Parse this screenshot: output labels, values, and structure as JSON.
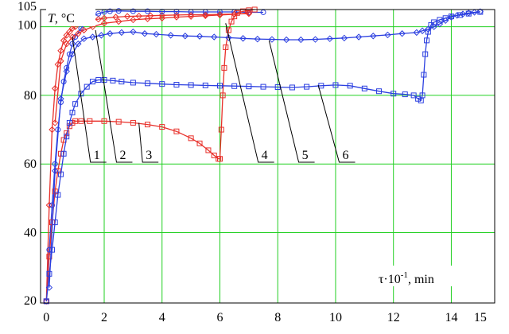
{
  "chart_data": {
    "type": "line",
    "xlabel": "τ·10",
    "xlabel_exp": "-1",
    "xlabel_unit": ", min",
    "ylabel_var": "T",
    "ylabel_unit": ", °C",
    "xlim": [
      -0.2,
      15.5
    ],
    "ylim": [
      19.5,
      105
    ],
    "x_ticks": [
      0,
      2,
      4,
      6,
      8,
      10,
      12,
      14,
      15
    ],
    "y_ticks": [
      20,
      40,
      60,
      80,
      100,
      105
    ],
    "grid": true,
    "colors": {
      "red": "#e8302a",
      "blue": "#2b3fe0",
      "grid": "#22d022"
    },
    "series": [
      {
        "label": "1",
        "color": "#e8302a",
        "marker": "diamond",
        "x": [
          0.0,
          0.1,
          0.2,
          0.3,
          0.4,
          0.5,
          0.6,
          0.7,
          0.8,
          0.9,
          1.0,
          1.2,
          1.4,
          1.6,
          1.8,
          2.0,
          2.4,
          2.8,
          3.2,
          3.6,
          4.0,
          4.5,
          5.0,
          5.5,
          6.0,
          6.5,
          7.0
        ],
        "y": [
          20,
          48,
          70,
          82,
          89,
          93,
          96,
          97.5,
          98.5,
          99.5,
          100,
          101,
          101.5,
          102,
          102.2,
          102.5,
          102.8,
          103,
          103.1,
          103.2,
          103.3,
          103.4,
          103.5,
          103.5,
          103.6,
          103.7,
          103.8
        ]
      },
      {
        "label": "2",
        "color": "#2b3fe0",
        "marker": "circle",
        "x": [
          0.0,
          0.1,
          0.2,
          0.3,
          0.4,
          0.5,
          0.6,
          0.7,
          0.8,
          0.9,
          1.0,
          1.2,
          1.4,
          1.6,
          1.8,
          2.0,
          2.2,
          2.5,
          3.0,
          3.5,
          4.0,
          4.5,
          5.0,
          5.5,
          6.0,
          6.5,
          7.0,
          7.5
        ],
        "y": [
          20,
          35,
          48,
          60,
          70,
          78,
          84,
          88,
          92,
          95,
          97,
          99.5,
          101.5,
          103,
          103.8,
          104.3,
          104.5,
          104.6,
          104.5,
          104.5,
          104.4,
          104.4,
          104.3,
          104.3,
          104.3,
          104.3,
          104.2,
          104.2
        ]
      },
      {
        "label": "3",
        "color": "#e8302a",
        "marker": "square",
        "x": [
          0.0,
          0.1,
          0.2,
          0.3,
          0.4,
          0.5,
          0.6,
          0.7,
          0.8,
          0.9,
          1.0,
          1.2,
          1.5,
          2.0,
          2.5,
          3.0,
          3.5,
          4.0,
          4.5,
          5.0,
          5.3,
          5.6,
          5.8,
          5.95,
          6.0,
          6.05,
          6.1,
          6.15,
          6.2,
          6.3,
          6.4,
          6.5,
          6.6,
          6.8,
          7.0,
          7.2
        ],
        "y": [
          20,
          33,
          43,
          52,
          58,
          63,
          67,
          69,
          71,
          72,
          72.5,
          72.5,
          72.5,
          72.5,
          72.3,
          72,
          71.5,
          70.8,
          69.5,
          67.5,
          66,
          64,
          62.5,
          61.5,
          61.5,
          70,
          80,
          88,
          94,
          99,
          101.5,
          103,
          104,
          104.5,
          104.8,
          105
        ]
      },
      {
        "label": "4",
        "color": "#e8302a",
        "marker": "diamond",
        "x": [
          0.3,
          0.5,
          0.7,
          0.9,
          1.1,
          1.3,
          1.6,
          2.0,
          2.5,
          3.0,
          3.5,
          4.0,
          4.5,
          5.0,
          5.5,
          6.0,
          6.5,
          7.0
        ],
        "y": [
          72,
          90,
          95,
          97,
          98,
          99,
          100,
          101,
          101.5,
          102,
          102.3,
          102.5,
          102.8,
          103,
          103.2,
          103.4,
          103.6,
          104
        ]
      },
      {
        "label": "5",
        "color": "#2b3fe0",
        "marker": "diamond",
        "x": [
          0.1,
          0.3,
          0.5,
          0.7,
          0.9,
          1.1,
          1.3,
          1.6,
          1.9,
          2.2,
          2.6,
          3.0,
          3.4,
          3.8,
          4.3,
          4.8,
          5.3,
          5.8,
          6.3,
          6.8,
          7.3,
          7.8,
          8.3,
          8.8,
          9.3,
          9.8,
          10.3,
          10.8,
          11.3,
          11.8,
          12.3,
          12.8,
          13.0,
          13.2,
          13.4,
          13.6,
          13.8,
          14.0,
          14.2,
          14.4,
          14.6,
          14.8,
          15.0
        ],
        "y": [
          24,
          58,
          79,
          87,
          92,
          95,
          96.5,
          97,
          97.5,
          98,
          98.3,
          98.5,
          98,
          97.8,
          97.5,
          97.3,
          97.2,
          97,
          96.8,
          96.6,
          96.4,
          96.3,
          96.2,
          96.2,
          96.3,
          96.5,
          96.7,
          97,
          97.3,
          97.6,
          98,
          98.3,
          98.8,
          99.3,
          100,
          100.8,
          101.8,
          102.8,
          103.3,
          103.7,
          104,
          104.2,
          104.4
        ]
      },
      {
        "label": "6",
        "color": "#2b3fe0",
        "marker": "square",
        "x": [
          0.0,
          0.1,
          0.2,
          0.3,
          0.4,
          0.5,
          0.6,
          0.7,
          0.8,
          0.9,
          1.0,
          1.2,
          1.4,
          1.6,
          1.8,
          2.0,
          2.3,
          2.6,
          3.0,
          3.5,
          4.0,
          4.5,
          5.0,
          5.5,
          6.0,
          6.5,
          7.0,
          7.5,
          8.0,
          8.5,
          9.0,
          9.5,
          10.0,
          10.5,
          11.0,
          11.5,
          12.0,
          12.4,
          12.7,
          12.85,
          12.95,
          13.0,
          13.05,
          13.1,
          13.15,
          13.2,
          13.3,
          13.4,
          13.6,
          13.8,
          14.0,
          14.3,
          14.6,
          15.0
        ],
        "y": [
          20,
          28,
          35,
          43,
          51,
          57,
          63,
          68,
          72,
          75,
          77.5,
          80.5,
          82.5,
          84,
          84.5,
          84.5,
          84.3,
          84,
          83.7,
          83.5,
          83.3,
          83.1,
          83,
          82.9,
          82.8,
          82.7,
          82.6,
          82.5,
          82.4,
          82.3,
          82.5,
          82.8,
          83,
          82.8,
          82,
          81.2,
          80.5,
          80.3,
          80,
          79,
          78.5,
          80,
          86,
          92,
          96,
          98.5,
          100.5,
          101.3,
          102,
          102.5,
          103,
          103.4,
          103.8,
          104.3
        ]
      }
    ]
  }
}
